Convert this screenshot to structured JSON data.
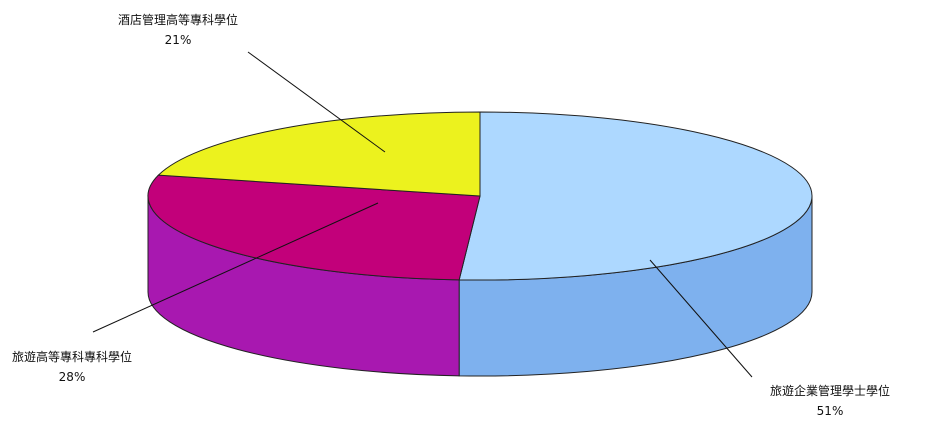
{
  "chart_data": {
    "type": "pie",
    "style": "3d",
    "categories": [
      "旅遊企業管理學士學位",
      "旅遊高等專科專科學位",
      "酒店管理高等專科學位"
    ],
    "values": [
      51,
      28,
      21
    ],
    "value_labels": [
      "51%",
      "28%",
      "21%"
    ],
    "colors": {
      "top": [
        "#ADD8FF",
        "#C2007A",
        "#ECF21E"
      ],
      "side": [
        "#7EB1EE",
        "#A818B0",
        "#B8BC10"
      ]
    },
    "legend": "none",
    "title": ""
  }
}
